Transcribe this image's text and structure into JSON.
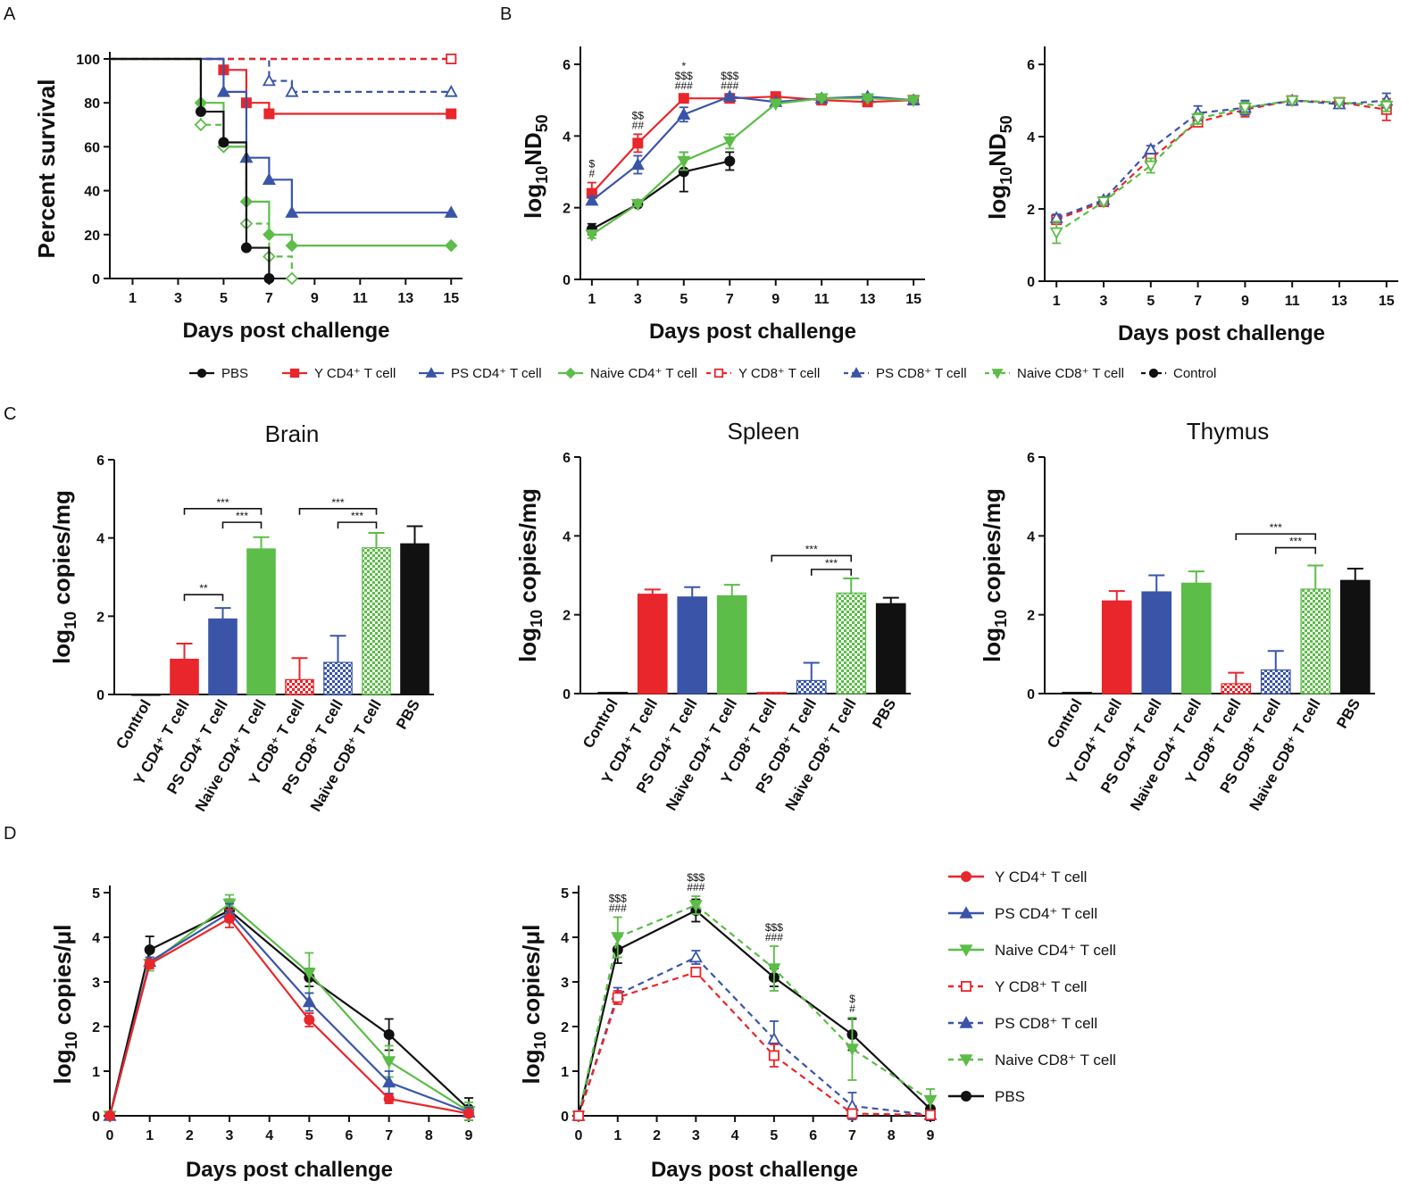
{
  "colors": {
    "PBS": "#111111",
    "Y CD4": "#e8262b",
    "PS CD4": "#3a55a8",
    "Naive CD4": "#5cbd48",
    "Y CD8": "#e8262b",
    "PS CD8": "#3a55a8",
    "Naive CD8": "#5cbd48",
    "Control": "#111111"
  },
  "panels": {
    "A": "A",
    "B": "B",
    "C": "C",
    "D": "D"
  },
  "legendB": [
    {
      "key": "PBS",
      "label": "PBS",
      "marker": "circle",
      "dash": false
    },
    {
      "key": "Y CD4",
      "label": "Y CD4⁺ T cell",
      "marker": "square",
      "dash": false
    },
    {
      "key": "PS CD4",
      "label": "PS CD4⁺ T cell",
      "marker": "triangle",
      "dash": false
    },
    {
      "key": "Naive CD4",
      "label": "Naive CD4⁺ T cell",
      "marker": "diamond",
      "dash": false
    },
    {
      "key": "Y CD8",
      "label": "Y CD8⁺ T cell",
      "marker": "square-open",
      "dash": true
    },
    {
      "key": "PS CD8",
      "label": "PS CD8⁺ T cell",
      "marker": "triangle",
      "dash": true
    },
    {
      "key": "Naive CD8",
      "label": "Naive CD8⁺ T cell",
      "marker": "triangle-down",
      "dash": true
    },
    {
      "key": "Control",
      "label": "Control",
      "marker": "circle",
      "dash": true
    }
  ],
  "legendD": [
    {
      "key": "Y CD4",
      "label": "Y CD4⁺ T cell",
      "marker": "circle",
      "dash": false
    },
    {
      "key": "PS CD4",
      "label": "PS CD4⁺ T cell",
      "marker": "triangle",
      "dash": false
    },
    {
      "key": "Naive CD4",
      "label": "Naive CD4⁺ T cell",
      "marker": "triangle-down",
      "dash": false
    },
    {
      "key": "Y CD8",
      "label": "Y CD8⁺ T cell",
      "marker": "square-open",
      "dash": true
    },
    {
      "key": "PS CD8",
      "label": "PS CD8⁺ T cell",
      "marker": "triangle",
      "dash": true
    },
    {
      "key": "Naive CD8",
      "label": "Naive CD8⁺ T cell",
      "marker": "triangle-down",
      "dash": true
    },
    {
      "key": "PBS",
      "label": "PBS",
      "marker": "circle",
      "dash": false
    }
  ],
  "chart_data": [
    {
      "id": "A",
      "type": "line",
      "step": true,
      "title": "",
      "xlabel": "Days post challenge",
      "ylabel": "Percent survival",
      "xlim": [
        0,
        15.5
      ],
      "ylim": [
        0,
        100
      ],
      "xticks": [
        1,
        3,
        5,
        7,
        9,
        11,
        13,
        15
      ],
      "yticks": [
        0,
        20,
        40,
        60,
        80,
        100
      ],
      "series": [
        {
          "name": "Control",
          "dash": true,
          "marker": "circle-open",
          "x": [
            0,
            15
          ],
          "y": [
            100,
            100
          ]
        },
        {
          "name": "PS CD8",
          "dash": true,
          "marker": "triangle-open",
          "x": [
            0,
            7,
            8,
            15
          ],
          "y": [
            100,
            90,
            85,
            85
          ]
        },
        {
          "name": "Y CD8",
          "dash": true,
          "marker": "square-open",
          "x": [
            0,
            15
          ],
          "y": [
            100,
            100
          ]
        },
        {
          "name": "Y CD4",
          "dash": false,
          "marker": "square",
          "x": [
            0,
            5,
            6,
            7,
            15
          ],
          "y": [
            100,
            95,
            80,
            75,
            75
          ]
        },
        {
          "name": "PS CD4",
          "dash": false,
          "marker": "triangle",
          "x": [
            0,
            5,
            6,
            7,
            8,
            15
          ],
          "y": [
            100,
            85,
            55,
            45,
            30,
            30
          ]
        },
        {
          "name": "Naive CD4",
          "dash": false,
          "marker": "diamond",
          "x": [
            0,
            4,
            5,
            6,
            7,
            8,
            15
          ],
          "y": [
            100,
            80,
            60,
            35,
            20,
            15,
            15
          ]
        },
        {
          "name": "Naive CD8",
          "dash": true,
          "marker": "diamond-open",
          "x": [
            0,
            4,
            5,
            6,
            7,
            8
          ],
          "y": [
            100,
            70,
            60,
            25,
            10,
            0
          ]
        },
        {
          "name": "PBS",
          "dash": false,
          "marker": "circle",
          "x": [
            0,
            4,
            5,
            6,
            7
          ],
          "y": [
            100,
            76,
            62,
            14,
            0
          ]
        }
      ]
    },
    {
      "id": "B1",
      "type": "line",
      "title": "",
      "xlabel": "Days post challenge",
      "ylabel": "log10ND50",
      "xlim": [
        0.5,
        15.5
      ],
      "ylim": [
        0,
        6.3
      ],
      "xticks": [
        1,
        3,
        5,
        7,
        9,
        11,
        13,
        15
      ],
      "yticks": [
        0,
        2,
        4,
        6
      ],
      "series": [
        {
          "name": "PBS",
          "dash": false,
          "marker": "circle",
          "x": [
            1,
            3,
            5,
            7
          ],
          "y": [
            1.4,
            2.1,
            3.0,
            3.3
          ],
          "err": [
            0.15,
            0.05,
            0.55,
            0.25
          ]
        },
        {
          "name": "Y CD4",
          "dash": false,
          "marker": "square",
          "x": [
            1,
            3,
            5,
            7,
            9,
            11,
            13,
            15
          ],
          "y": [
            2.4,
            3.8,
            5.05,
            5.05,
            5.1,
            5.0,
            4.95,
            5.0
          ],
          "err": [
            0.3,
            0.25,
            0.1,
            0.05,
            0.05,
            0.05,
            0.1,
            0.05
          ]
        },
        {
          "name": "PS CD4",
          "dash": false,
          "marker": "triangle",
          "x": [
            1,
            3,
            5,
            7,
            9,
            11,
            13,
            15
          ],
          "y": [
            2.2,
            3.2,
            4.6,
            5.1,
            4.95,
            5.05,
            5.1,
            5.0
          ],
          "err": [
            0.1,
            0.25,
            0.2,
            0.05,
            0.05,
            0.05,
            0.05,
            0.05
          ]
        },
        {
          "name": "Naive CD4",
          "dash": false,
          "marker": "triangle-down",
          "x": [
            1,
            3,
            5,
            7,
            9,
            11,
            13,
            15
          ],
          "y": [
            1.25,
            2.1,
            3.3,
            3.85,
            4.9,
            5.05,
            5.05,
            5.0
          ],
          "err": [
            0.1,
            0.05,
            0.25,
            0.2,
            0.05,
            0.05,
            0.05,
            0.05
          ]
        }
      ],
      "annotations": [
        {
          "x": 1,
          "lines": [
            "$",
            "#"
          ]
        },
        {
          "x": 3,
          "lines": [
            "$$",
            "##"
          ]
        },
        {
          "x": 5,
          "lines": [
            "*",
            "$$$",
            "###"
          ]
        },
        {
          "x": 7,
          "lines": [
            "$$$",
            "###"
          ]
        }
      ]
    },
    {
      "id": "B2",
      "type": "line",
      "title": "",
      "xlabel": "Days post challenge",
      "ylabel": "log10ND50",
      "xlim": [
        0.5,
        15.5
      ],
      "ylim": [
        0,
        6.3
      ],
      "xticks": [
        1,
        3,
        5,
        7,
        9,
        11,
        13,
        15
      ],
      "yticks": [
        0,
        2,
        4,
        6
      ],
      "series": [
        {
          "name": "Y CD8",
          "dash": true,
          "marker": "square-open",
          "x": [
            1,
            3,
            5,
            7,
            9,
            11,
            13,
            15
          ],
          "y": [
            1.7,
            2.2,
            3.4,
            4.4,
            4.75,
            5.0,
            4.95,
            4.75
          ],
          "err": [
            0.1,
            0.05,
            0.15,
            0.1,
            0.2,
            0.05,
            0.05,
            0.3
          ]
        },
        {
          "name": "PS CD8",
          "dash": true,
          "marker": "triangle-open",
          "x": [
            1,
            3,
            5,
            7,
            9,
            11,
            13,
            15
          ],
          "y": [
            1.75,
            2.25,
            3.65,
            4.65,
            4.8,
            5.0,
            4.9,
            5.0
          ],
          "err": [
            0.1,
            0.05,
            0.1,
            0.2,
            0.2,
            0.05,
            0.05,
            0.2
          ]
        },
        {
          "name": "Naive CD8",
          "dash": true,
          "marker": "triangle-down-open",
          "x": [
            1,
            3,
            5,
            7,
            9,
            11,
            13,
            15
          ],
          "y": [
            1.35,
            2.2,
            3.2,
            4.5,
            4.8,
            5.0,
            4.95,
            4.85
          ],
          "err": [
            0.3,
            0.05,
            0.2,
            0.15,
            0.15,
            0.05,
            0.05,
            0.15
          ]
        }
      ]
    },
    {
      "id": "C1",
      "type": "bar",
      "title": "Brain",
      "xlabel": "",
      "ylabel": "log10 copies/mg",
      "ylim": [
        0,
        6
      ],
      "yticks": [
        0,
        2,
        4,
        6
      ],
      "categories": [
        "Control",
        "Y CD4⁺ T cell",
        "PS CD4⁺ T cell",
        "Naive CD4⁺ T cell",
        "Y CD8⁺ T cell",
        "PS CD8⁺ T cell",
        "Naive CD8⁺ T cell",
        "PBS"
      ],
      "values": [
        0,
        0.9,
        1.93,
        3.72,
        0.38,
        0.82,
        3.75,
        3.85
      ],
      "errors": [
        0,
        0.4,
        0.28,
        0.3,
        0.55,
        0.68,
        0.38,
        0.45
      ],
      "brackets": [
        {
          "from": 1,
          "to": 2,
          "label": "**",
          "y": 2.55
        },
        {
          "from": 1,
          "to": 3,
          "label": "***",
          "y": 4.75
        },
        {
          "from": 2,
          "to": 3,
          "label": "***",
          "y": 4.4
        },
        {
          "from": 4,
          "to": 6,
          "label": "***",
          "y": 4.75
        },
        {
          "from": 5,
          "to": 6,
          "label": "***",
          "y": 4.4
        }
      ]
    },
    {
      "id": "C2",
      "type": "bar",
      "title": "Spleen",
      "xlabel": "",
      "ylabel": "log10 copies/mg",
      "ylim": [
        0,
        6
      ],
      "yticks": [
        0,
        2,
        4,
        6
      ],
      "categories": [
        "Control",
        "Y CD4⁺ T cell",
        "PS CD4⁺ T cell",
        "Naive CD4⁺ T cell",
        "Y CD8⁺ T cell",
        "PS CD8⁺ T cell",
        "Naive CD8⁺ T cell",
        "PBS"
      ],
      "values": [
        0.03,
        2.52,
        2.45,
        2.48,
        0.03,
        0.33,
        2.55,
        2.28
      ],
      "errors": [
        0,
        0.12,
        0.25,
        0.28,
        0,
        0.45,
        0.37,
        0.15
      ],
      "brackets": [
        {
          "from": 4,
          "to": 6,
          "label": "***",
          "y": 3.5
        },
        {
          "from": 5,
          "to": 6,
          "label": "***",
          "y": 3.15
        }
      ]
    },
    {
      "id": "C3",
      "type": "bar",
      "title": "Thymus",
      "xlabel": "",
      "ylabel": "log10 copies/mg",
      "ylim": [
        0,
        6
      ],
      "yticks": [
        0,
        2,
        4,
        6
      ],
      "categories": [
        "Control",
        "Y CD4⁺ T cell",
        "PS CD4⁺ T cell",
        "Naive CD4⁺ T cell",
        "Y CD8⁺ T cell",
        "PS CD8⁺ T cell",
        "Naive CD8⁺ T cell",
        "PBS"
      ],
      "values": [
        0.03,
        2.35,
        2.58,
        2.8,
        0.25,
        0.6,
        2.65,
        2.87
      ],
      "errors": [
        0,
        0.25,
        0.42,
        0.3,
        0.28,
        0.48,
        0.6,
        0.3
      ],
      "brackets": [
        {
          "from": 4,
          "to": 6,
          "label": "***",
          "y": 4.05
        },
        {
          "from": 5,
          "to": 6,
          "label": "***",
          "y": 3.7
        }
      ]
    },
    {
      "id": "D1",
      "type": "line",
      "title": "",
      "xlabel": "Days post challenge",
      "ylabel": "log10 copies/μl",
      "xlim": [
        0,
        9
      ],
      "ylim": [
        0,
        5
      ],
      "xticks": [
        0,
        1,
        2,
        3,
        4,
        5,
        6,
        7,
        8,
        9
      ],
      "yticks": [
        0,
        1,
        2,
        3,
        4,
        5
      ],
      "series": [
        {
          "name": "PBS",
          "dash": false,
          "marker": "circle",
          "x": [
            0,
            1,
            3,
            5,
            7,
            9
          ],
          "y": [
            0,
            3.72,
            4.6,
            3.1,
            1.82,
            0.15
          ],
          "err": [
            0,
            0.3,
            0.25,
            0.2,
            0.35,
            0.25
          ]
        },
        {
          "name": "Naive CD4",
          "dash": false,
          "marker": "triangle-down",
          "x": [
            0,
            1,
            3,
            5,
            7,
            9
          ],
          "y": [
            0,
            3.4,
            4.75,
            3.2,
            1.22,
            0.1
          ],
          "err": [
            0,
            0.15,
            0.2,
            0.45,
            0.35,
            0.2
          ]
        },
        {
          "name": "PS CD4",
          "dash": false,
          "marker": "triangle",
          "x": [
            0,
            1,
            3,
            5,
            7,
            9
          ],
          "y": [
            0,
            3.45,
            4.55,
            2.55,
            0.75,
            0.08
          ],
          "err": [
            0,
            0.1,
            0.2,
            0.2,
            0.25,
            0.1
          ]
        },
        {
          "name": "Y CD4",
          "dash": false,
          "marker": "circle",
          "x": [
            0,
            1,
            3,
            5,
            7,
            9
          ],
          "y": [
            0,
            3.4,
            4.42,
            2.15,
            0.38,
            0.05
          ],
          "err": [
            0,
            0.1,
            0.2,
            0.15,
            0.1,
            0.05
          ]
        }
      ]
    },
    {
      "id": "D2",
      "type": "line",
      "title": "",
      "xlabel": "Days post challenge",
      "ylabel": "log10 copies/μl",
      "xlim": [
        0,
        9
      ],
      "ylim": [
        0,
        5
      ],
      "xticks": [
        0,
        1,
        2,
        3,
        4,
        5,
        6,
        7,
        8,
        9
      ],
      "yticks": [
        0,
        1,
        2,
        3,
        4,
        5
      ],
      "series": [
        {
          "name": "PBS",
          "dash": false,
          "marker": "circle",
          "x": [
            0,
            1,
            3,
            5,
            7,
            9
          ],
          "y": [
            0,
            3.72,
            4.6,
            3.1,
            1.82,
            0.15
          ],
          "err": [
            0,
            0.3,
            0.25,
            0.2,
            0.35,
            0.25
          ]
        },
        {
          "name": "Naive CD8",
          "dash": true,
          "marker": "triangle-down",
          "x": [
            0,
            1,
            3,
            5,
            7,
            9
          ],
          "y": [
            0,
            4.0,
            4.72,
            3.3,
            1.5,
            0.35
          ],
          "err": [
            0,
            0.45,
            0.2,
            0.5,
            0.7,
            0.25
          ]
        },
        {
          "name": "PS CD8",
          "dash": true,
          "marker": "triangle-open",
          "x": [
            0,
            1,
            3,
            5,
            7,
            9
          ],
          "y": [
            0,
            2.72,
            3.55,
            1.72,
            0.22,
            0.02
          ],
          "err": [
            0,
            0.15,
            0.15,
            0.4,
            0.3,
            0.05
          ]
        },
        {
          "name": "Y CD8",
          "dash": true,
          "marker": "square-open",
          "x": [
            0,
            1,
            3,
            5,
            7,
            9
          ],
          "y": [
            0,
            2.65,
            3.22,
            1.35,
            0.05,
            0.02
          ],
          "err": [
            0,
            0.15,
            0.1,
            0.25,
            0.05,
            0.05
          ]
        }
      ],
      "annotations": [
        {
          "x": 1,
          "lines": [
            "$$$",
            "###"
          ]
        },
        {
          "x": 3,
          "lines": [
            "$$$",
            "###"
          ]
        },
        {
          "x": 5,
          "lines": [
            "$$$",
            "###"
          ]
        },
        {
          "x": 7,
          "lines": [
            "$",
            "#"
          ]
        }
      ]
    }
  ]
}
